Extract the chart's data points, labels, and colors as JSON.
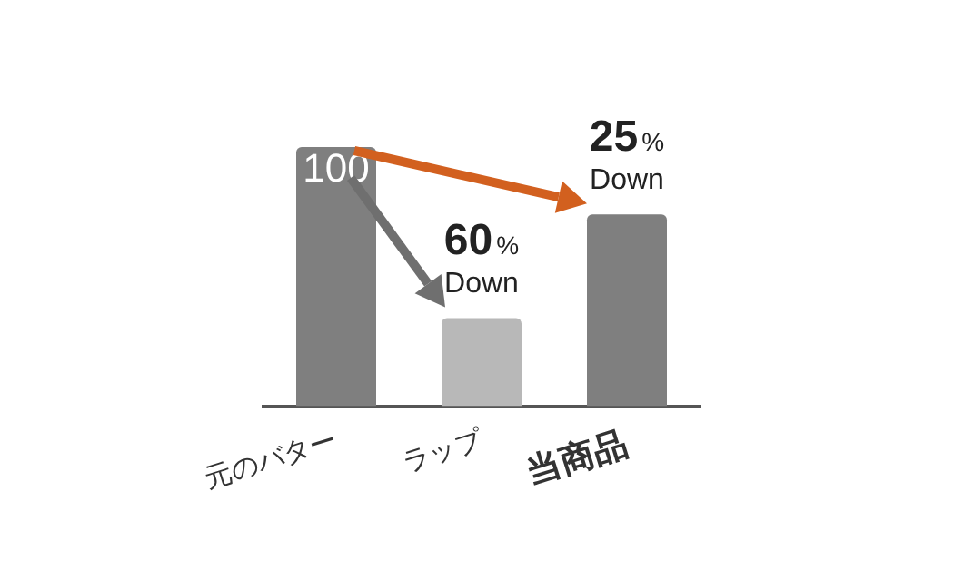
{
  "chart_data": {
    "type": "bar",
    "categories": [
      "元のバター",
      "ラップ",
      "当商品"
    ],
    "values": [
      100,
      34,
      74
    ],
    "colors": [
      "#7f7f7f",
      "#b8b8b8",
      "#7f7f7f"
    ],
    "value_labels": [
      "100",
      null,
      null
    ],
    "annotations": [
      {
        "text": "60% Down",
        "x": "ラップ",
        "y": 34
      },
      {
        "text": "25% Down",
        "x": "当商品",
        "y": 74
      }
    ],
    "grid": false,
    "legend": false,
    "tick_labels": "x"
  }
}
